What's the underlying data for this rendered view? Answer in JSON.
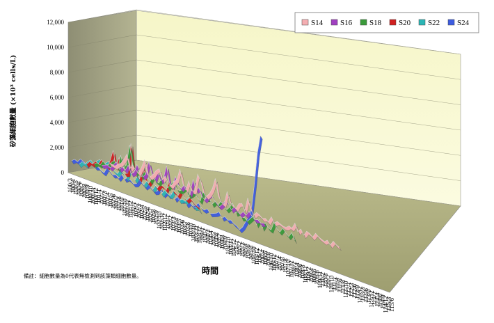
{
  "chart_data": {
    "type": "line",
    "style": "3d-ribbon",
    "ylabel": "矽藻細胞數量 (×10³ cells/L)",
    "xlabel": "時間",
    "ylim": [
      0,
      12000
    ],
    "yticks": [
      "0",
      "2,000",
      "4,000",
      "6,000",
      "8,000",
      "10,000",
      "12,000"
    ],
    "grid": true,
    "legend": "top-right",
    "note": "備註：細胞數量為0代表無檢測到該藻類細胞數量。",
    "dates_visible": [
      "100/3",
      "100/4",
      "100/5",
      "100/6",
      "100/7",
      "100/8",
      "100/9",
      "100/10",
      "100/11",
      "100/12",
      "101/1",
      "101/2",
      "101/3",
      "101/4",
      "101/5",
      "101/6",
      "101/7",
      "101/8",
      "101/9",
      "101/10",
      "101/11",
      "101/12",
      "102/1",
      "102/2",
      "102/3",
      "102/4",
      "102/5",
      "102/6",
      "102/7",
      "102/8",
      "102/9",
      "102/10",
      "102/11",
      "102/12",
      "103/1",
      "103/2",
      "103/3",
      "103/4",
      "103/5",
      "103/6",
      "103/7",
      "103/8",
      "103/9",
      "103/10",
      "103/11",
      "103/12",
      "104/1",
      "104/2",
      "104/3",
      "104/4",
      "104/5",
      "104/6",
      "104/7",
      "104/8",
      "104/9",
      "104/10",
      "104/11",
      "104/12",
      "105/1",
      "105/2",
      "105/3",
      "105/4",
      "105/6",
      "105/8",
      "105/10",
      "105/12",
      "106/2",
      "106/4",
      "106/6",
      "106/8",
      "106/10",
      "106/12",
      "107/2",
      "107/4",
      "107/6",
      "107/8",
      "107/10",
      "107/12",
      "108/2",
      "108/4",
      "108/6",
      "108/8",
      "108/11",
      "109/2",
      "109/4",
      "109/6",
      "109/8",
      "109/11",
      "110/2",
      "110/5",
      "110/7",
      "110/10",
      "111/1",
      "111/4",
      "111/6",
      "111/8",
      "111/10",
      "112/1",
      "112/3",
      "112/6",
      "112/9",
      "112/12",
      "113/3",
      "113/6",
      "113/9",
      "113/12",
      "114/2",
      "114/4",
      "114/6",
      "114/9",
      "114/12",
      "115/3",
      "115/6"
    ],
    "series": [
      {
        "name": "S14",
        "color": "#f4aeb2",
        "values": [
          200,
          150,
          100,
          350,
          500,
          900,
          1400,
          300,
          700,
          400,
          250,
          800,
          1500,
          400,
          300,
          600,
          1000,
          1200,
          400,
          800,
          300,
          200,
          600,
          900,
          1800,
          700,
          300,
          1100,
          400,
          500,
          1900,
          1500,
          600,
          400,
          700,
          1200,
          2100,
          800,
          400,
          300,
          1400,
          600,
          500,
          300,
          800,
          900,
          400,
          1500,
          700,
          300,
          600,
          500,
          300,
          400,
          200,
          700,
          300,
          500,
          400,
          300,
          300,
          500,
          400,
          900,
          300,
          600,
          200,
          600,
          500,
          300,
          700,
          500,
          400,
          300,
          500,
          200,
          600,
          400,
          300
        ]
      },
      {
        "name": "S16",
        "color": "#a040c0",
        "values": [
          100,
          200,
          300,
          150,
          500,
          800,
          300,
          600,
          400,
          900,
          300,
          500,
          1200,
          800,
          400,
          700,
          1800,
          1000,
          500,
          1300,
          600,
          900,
          2000,
          700,
          500,
          1400,
          800,
          600,
          1000,
          700,
          400,
          1700,
          900,
          1200,
          600,
          400,
          800,
          1100,
          700,
          500,
          300,
          600,
          1000,
          800,
          400,
          700,
          500,
          300,
          600,
          400,
          800,
          500,
          300,
          400,
          200,
          300
        ]
      },
      {
        "name": "S18",
        "color": "#3a9a3a",
        "values": [
          300,
          500,
          400,
          800,
          600,
          700,
          1000,
          1200,
          600,
          1800,
          900,
          1200,
          2900,
          1500,
          800,
          1100,
          700,
          1200,
          900,
          600,
          1100,
          800,
          700,
          1400,
          900,
          600,
          1000,
          1300,
          800,
          700,
          900,
          1200,
          600,
          800,
          1100,
          700,
          500,
          1400,
          900,
          1000,
          600,
          900,
          700,
          1100,
          800,
          600,
          900,
          1300,
          600,
          800,
          400,
          500,
          300,
          600,
          900,
          300,
          800,
          200,
          700,
          400,
          300,
          1000,
          600,
          400,
          800,
          500,
          300,
          700,
          200
        ]
      },
      {
        "name": "S20",
        "color": "#d02020",
        "values": [
          400,
          700,
          600,
          900,
          800,
          1200,
          1000,
          800,
          1400,
          2300,
          1000,
          1900,
          1100,
          800,
          900,
          3400,
          1200,
          1000,
          800,
          2000,
          900,
          700,
          1100,
          800,
          600,
          1000,
          900,
          700,
          1500,
          900,
          800,
          600,
          1100,
          700,
          500,
          800,
          600,
          400,
          300
        ]
      },
      {
        "name": "S22",
        "color": "#2bb5b5",
        "values": [
          500,
          800,
          700,
          1000,
          1200,
          900,
          1300,
          1500,
          1100,
          1400,
          1600,
          1200,
          1000,
          900,
          1300,
          1100,
          800,
          1500,
          1200,
          900,
          1400,
          1100,
          800,
          1200,
          1000,
          700,
          1100,
          900,
          600,
          1000,
          800,
          700,
          1200,
          900,
          600,
          800,
          700,
          1100,
          900,
          500,
          600,
          400
        ]
      },
      {
        "name": "S24",
        "color": "#3d5ce0",
        "values": [
          900,
          1100,
          1000,
          1300,
          1200,
          1000,
          1400,
          1300,
          1100,
          1200,
          1000,
          900,
          1400,
          1200,
          1000,
          1100,
          900,
          1300,
          1000,
          1200,
          1100,
          900,
          1000,
          1400,
          1200,
          1000,
          1300,
          1100,
          900,
          1000,
          1500,
          900,
          1200,
          1000,
          1300,
          900,
          1200,
          1000,
          1100,
          800,
          1100,
          900,
          1000,
          1300,
          1000,
          900,
          1100,
          800,
          900,
          1000,
          1200,
          800,
          1000,
          800,
          900,
          700,
          600,
          400,
          700,
          1200,
          1700,
          2400,
          4500,
          7000,
          8500
        ]
      }
    ]
  },
  "legend_items": [
    {
      "label": "S14",
      "color": "#f4aeb2"
    },
    {
      "label": "S16",
      "color": "#a040c0"
    },
    {
      "label": "S18",
      "color": "#3a9a3a"
    },
    {
      "label": "S20",
      "color": "#d02020"
    },
    {
      "label": "S22",
      "color": "#2bb5b5"
    },
    {
      "label": "S24",
      "color": "#3d5ce0"
    }
  ]
}
